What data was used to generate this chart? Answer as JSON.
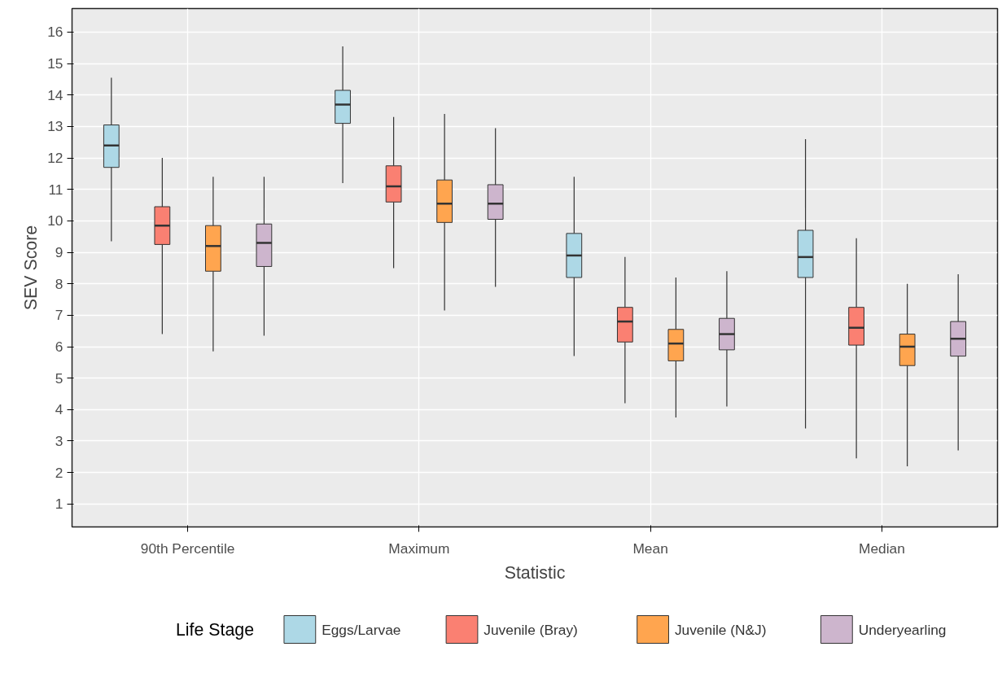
{
  "chart_data": {
    "type": "box",
    "xlabel": "Statistic",
    "ylabel": "SEV Score",
    "legend_title": "Life Stage",
    "legend": "bottom",
    "grid": true,
    "categories": [
      "90th Percentile",
      "Maximum",
      "Mean",
      "Median"
    ],
    "ylim": [
      0.27,
      16.75
    ],
    "yticks": [
      1,
      2,
      3,
      4,
      5,
      6,
      7,
      8,
      9,
      10,
      11,
      12,
      13,
      14,
      15,
      16
    ],
    "series": [
      {
        "name": "Eggs/Larvae",
        "color": "#add8e6",
        "boxes": [
          {
            "low": 9.35,
            "q1": 11.7,
            "median": 12.4,
            "q3": 13.05,
            "high": 14.55
          },
          {
            "low": 11.2,
            "q1": 13.1,
            "median": 13.7,
            "q3": 14.15,
            "high": 15.55
          },
          {
            "low": 5.7,
            "q1": 8.2,
            "median": 8.9,
            "q3": 9.6,
            "high": 11.4
          },
          {
            "low": 3.4,
            "q1": 8.2,
            "median": 8.85,
            "q3": 9.7,
            "high": 12.6
          }
        ]
      },
      {
        "name": "Juvenile (Bray)",
        "color": "#fa8072",
        "boxes": [
          {
            "low": 6.4,
            "q1": 9.25,
            "median": 9.85,
            "q3": 10.45,
            "high": 12.0
          },
          {
            "low": 8.5,
            "q1": 10.6,
            "median": 11.1,
            "q3": 11.75,
            "high": 13.3
          },
          {
            "low": 4.2,
            "q1": 6.15,
            "median": 6.8,
            "q3": 7.25,
            "high": 8.85
          },
          {
            "low": 2.45,
            "q1": 6.05,
            "median": 6.6,
            "q3": 7.25,
            "high": 9.45
          }
        ]
      },
      {
        "name": "Juvenile (N&J)",
        "color": "#ffa54f",
        "boxes": [
          {
            "low": 5.85,
            "q1": 8.4,
            "median": 9.2,
            "q3": 9.85,
            "high": 11.4
          },
          {
            "low": 7.15,
            "q1": 9.95,
            "median": 10.55,
            "q3": 11.3,
            "high": 13.4
          },
          {
            "low": 3.75,
            "q1": 5.55,
            "median": 6.1,
            "q3": 6.55,
            "high": 8.2
          },
          {
            "low": 2.2,
            "q1": 5.4,
            "median": 6.0,
            "q3": 6.4,
            "high": 8.0
          }
        ]
      },
      {
        "name": "Underyearling",
        "color": "#cdb5cd",
        "boxes": [
          {
            "low": 6.35,
            "q1": 8.55,
            "median": 9.3,
            "q3": 9.9,
            "high": 11.4
          },
          {
            "low": 7.9,
            "q1": 10.05,
            "median": 10.55,
            "q3": 11.15,
            "high": 12.95
          },
          {
            "low": 4.1,
            "q1": 5.9,
            "median": 6.4,
            "q3": 6.9,
            "high": 8.4
          },
          {
            "low": 2.7,
            "q1": 5.7,
            "median": 6.25,
            "q3": 6.8,
            "high": 8.3
          }
        ]
      }
    ]
  }
}
